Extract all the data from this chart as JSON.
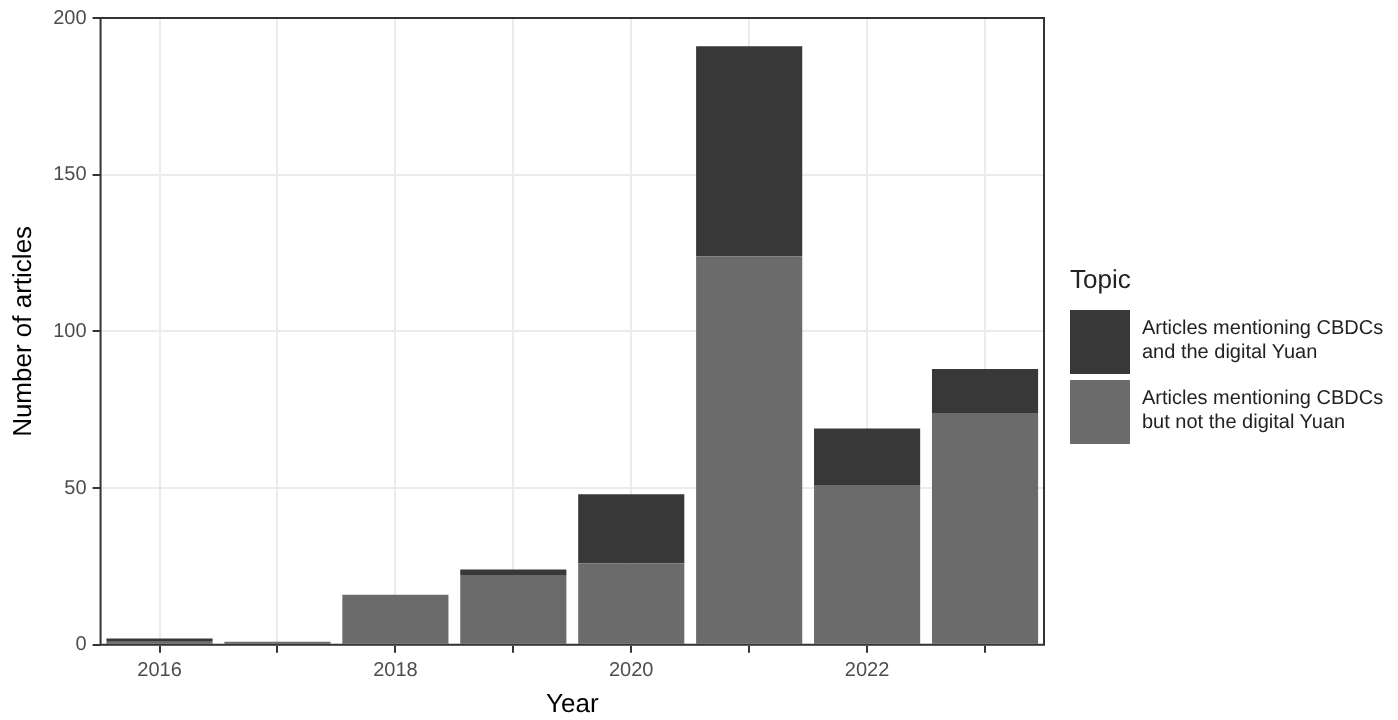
{
  "chart_data": {
    "type": "bar",
    "stacked": true,
    "xlabel": "Year",
    "ylabel": "Number of articles",
    "legend_title": "Topic",
    "legend": "right",
    "categories": [
      "2016",
      null,
      "2018",
      null,
      "2020",
      null,
      "2022",
      null
    ],
    "series": [
      {
        "name": "Articles mentioning CBDCs but not the digital Yuan",
        "color": "#6b6b6b",
        "values": [
          1,
          1,
          16,
          22,
          26,
          124,
          51,
          74
        ]
      },
      {
        "name": "Articles mentioning CBDCs and the digital Yuan",
        "color": "#383838",
        "values": [
          1,
          0,
          0,
          2,
          22,
          67,
          18,
          14
        ]
      }
    ],
    "ylim": [
      0,
      200
    ],
    "yticks": [
      0,
      50,
      100,
      150,
      200
    ],
    "grid": true
  }
}
